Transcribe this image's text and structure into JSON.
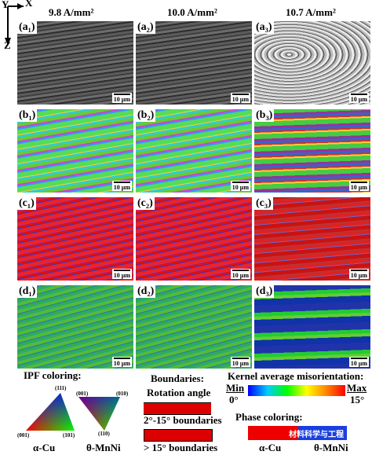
{
  "axes": {
    "x": "X",
    "y": "Y",
    "z": "Z"
  },
  "columns": [
    "9.8 A/mm²",
    "10.0 A/mm²",
    "10.7 A/mm²"
  ],
  "panels": [
    [
      "(a₁)",
      "(a₂)",
      "(a₃)"
    ],
    [
      "(b₁)",
      "(b₂)",
      "(b₃)"
    ],
    [
      "(c₁)",
      "(c₂)",
      "(c₃)"
    ],
    [
      "(d₁)",
      "(d₂)",
      "(d₃)"
    ]
  ],
  "scale_bar": "10 μm",
  "legend": {
    "ipf": {
      "title": "IPF coloring:",
      "cu_poles": [
        "(111)",
        "(001)",
        "(101)"
      ],
      "mnni_poles": [
        "(001)",
        "(010)",
        "(110)"
      ],
      "cu_label": "α-Cu",
      "mnni_label": "θ-MnNi"
    },
    "boundaries": {
      "title": "Boundaries:",
      "subtitle": "Rotation angle",
      "low": "2°-15° boundaries",
      "high": "> 15° boundaries"
    },
    "kam": {
      "title": "Kernel average misorientation:",
      "min": "Min",
      "min_value": "0°",
      "max": "Max",
      "max_value": "15°"
    },
    "phase": {
      "title": "Phase coloring:",
      "cu": "α-Cu",
      "mnni": "θ-MnNi"
    },
    "watermark": "材料科学与工程"
  }
}
